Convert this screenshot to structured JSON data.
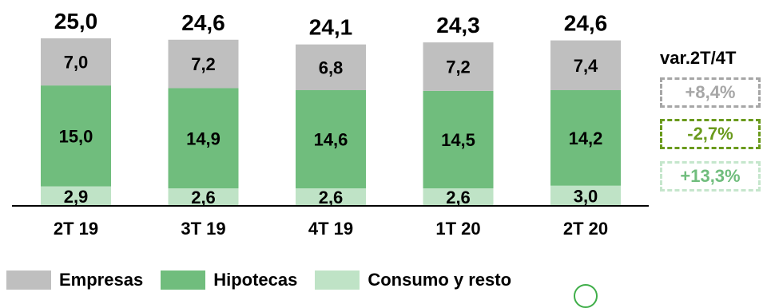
{
  "chart_data": {
    "type": "bar",
    "stacked": true,
    "categories": [
      "2T 19",
      "3T 19",
      "4T 19",
      "1T 20",
      "2T 20"
    ],
    "totals": [
      "25,0",
      "24,6",
      "24,1",
      "24,3",
      "24,6"
    ],
    "series": [
      {
        "name": "Consumo y resto",
        "values": [
          2.9,
          2.6,
          2.6,
          2.6,
          3.0
        ],
        "labels": [
          "2,9",
          "2,6",
          "2,6",
          "2,6",
          "3,0"
        ],
        "color": "#bfe3c6"
      },
      {
        "name": "Hipotecas",
        "values": [
          15.0,
          14.9,
          14.6,
          14.5,
          14.2
        ],
        "labels": [
          "15,0",
          "14,9",
          "14,6",
          "14,5",
          "14,2"
        ],
        "color": "#70bd7d"
      },
      {
        "name": "Empresas",
        "values": [
          7.0,
          7.2,
          6.8,
          7.2,
          7.4
        ],
        "labels": [
          "7,0",
          "7,2",
          "6,8",
          "7,2",
          "7,4"
        ],
        "color": "#bfbfbf"
      }
    ],
    "legend_position": "bottom-left"
  },
  "variation": {
    "title": "var.2T/4T",
    "items": [
      {
        "series": "Empresas",
        "value": "+8,4%",
        "border": "#a6a6a6",
        "text": "#a6a6a6"
      },
      {
        "series": "Hipotecas",
        "value": "-2,7%",
        "border": "#6a9a1c",
        "text": "#6a9a1c"
      },
      {
        "series": "Consumo y resto",
        "value": "+13,3%",
        "border": "#c5e6cc",
        "text": "#70bd7d"
      }
    ]
  },
  "legend": [
    {
      "label": "Empresas",
      "color": "#bfbfbf"
    },
    {
      "label": "Hipotecas",
      "color": "#70bd7d"
    },
    {
      "label": "Consumo y resto",
      "color": "#bfe3c6"
    }
  ]
}
